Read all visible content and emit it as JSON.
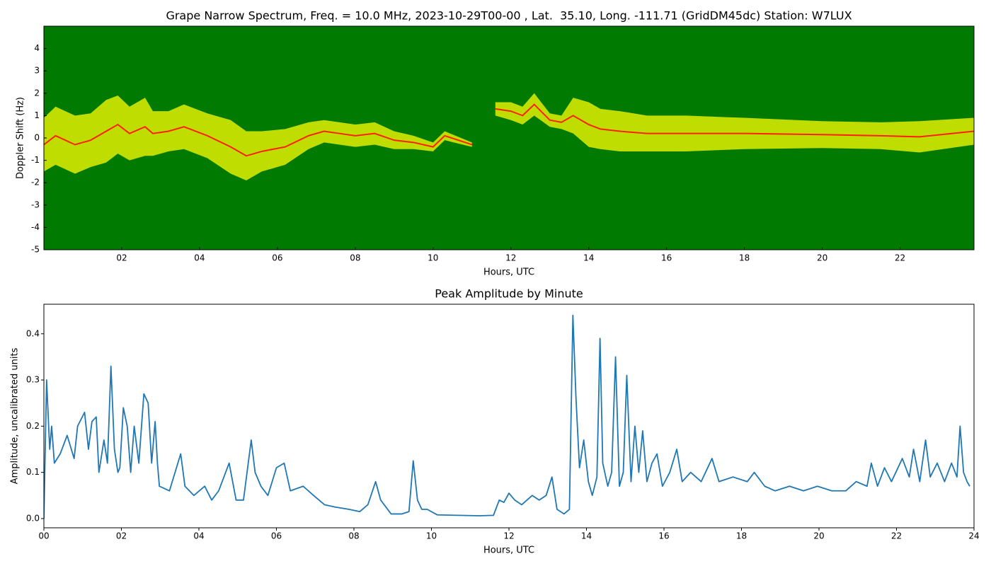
{
  "chart_data": [
    {
      "type": "spectrogram",
      "title": "Grape Narrow Spectrum, Freq. = 10.0 MHz, 2023-10-29T00-00 , Lat.  35.10, Long. -111.71 (GridDM45dc) Station: W7LUX",
      "xlabel": "Hours, UTC",
      "ylabel": "Doppler Shift (Hz)",
      "x": [
        0,
        0.3,
        0.8,
        1.2,
        1.6,
        1.9,
        2.2,
        2.6,
        2.8,
        3.2,
        3.6,
        4.2,
        4.8,
        5.2,
        5.6,
        6.2,
        6.8,
        7.2,
        7.6,
        8.0,
        8.5,
        9.0,
        9.5,
        10.0,
        10.3,
        11.0,
        11.2,
        11.6,
        12.0,
        12.3,
        12.6,
        13.0,
        13.3,
        13.6,
        14.0,
        14.3,
        14.8,
        15.5,
        16.5,
        18,
        20,
        21.5,
        22.5,
        23.9
      ],
      "values": [
        -0.3,
        0.1,
        -0.3,
        -0.1,
        0.3,
        0.6,
        0.2,
        0.5,
        0.2,
        0.3,
        0.5,
        0.1,
        -0.4,
        -0.8,
        -0.6,
        -0.4,
        0.1,
        0.3,
        0.2,
        0.1,
        0.2,
        -0.1,
        -0.2,
        -0.4,
        0.1,
        -0.3,
        null,
        1.3,
        1.2,
        1.0,
        1.5,
        0.8,
        0.7,
        1.0,
        0.6,
        0.4,
        0.3,
        0.2,
        0.2,
        0.2,
        0.15,
        0.1,
        0.05,
        0.3
      ],
      "spread": [
        1.2,
        1.3,
        1.3,
        1.2,
        1.4,
        1.3,
        1.2,
        1.3,
        1.0,
        0.9,
        1.0,
        1.0,
        1.2,
        1.1,
        0.9,
        0.8,
        0.6,
        0.5,
        0.5,
        0.5,
        0.5,
        0.4,
        0.3,
        0.2,
        0.2,
        0.1,
        null,
        0.3,
        0.4,
        0.4,
        0.5,
        0.3,
        0.3,
        0.8,
        1.0,
        0.9,
        0.9,
        0.8,
        0.8,
        0.7,
        0.6,
        0.6,
        0.7,
        0.6
      ],
      "background_color": "#007a00",
      "band_color": "#ffff00",
      "peak_color": "#ff2000",
      "xlim": [
        0,
        23.9
      ],
      "ylim": [
        -5,
        5
      ],
      "xticks": [
        {
          "value": 2,
          "label": "02"
        },
        {
          "value": 4,
          "label": "04"
        },
        {
          "value": 6,
          "label": "06"
        },
        {
          "value": 8,
          "label": "08"
        },
        {
          "value": 10,
          "label": "10"
        },
        {
          "value": 12,
          "label": "12"
        },
        {
          "value": 14,
          "label": "14"
        },
        {
          "value": 16,
          "label": "16"
        },
        {
          "value": 18,
          "label": "18"
        },
        {
          "value": 20,
          "label": "20"
        },
        {
          "value": 22,
          "label": "22"
        }
      ],
      "yticks": [
        -5,
        -4,
        -3,
        -2,
        -1,
        0,
        1,
        2,
        3,
        4
      ]
    },
    {
      "type": "line",
      "title": "Peak Amplitude by Minute",
      "xlabel": "Hours, UTC",
      "ylabel": "Amplitude, uncalibrated units",
      "color": "#1f77b4",
      "x": [
        0,
        0.07,
        0.15,
        0.2,
        0.27,
        0.42,
        0.6,
        0.78,
        0.87,
        1.05,
        1.15,
        1.24,
        1.35,
        1.42,
        1.55,
        1.64,
        1.73,
        1.82,
        1.91,
        1.96,
        2.05,
        2.15,
        2.24,
        2.33,
        2.45,
        2.58,
        2.69,
        2.78,
        2.87,
        2.93,
        2.98,
        3.24,
        3.53,
        3.64,
        3.87,
        4.15,
        4.33,
        4.51,
        4.78,
        4.96,
        5.15,
        5.35,
        5.45,
        5.6,
        5.78,
        6.0,
        6.2,
        6.36,
        6.69,
        6.96,
        7.24,
        7.51,
        7.87,
        8.15,
        8.36,
        8.56,
        8.69,
        8.96,
        9.24,
        9.42,
        9.53,
        9.64,
        9.75,
        9.89,
        10.15,
        10.69,
        11.24,
        11.6,
        11.75,
        11.87,
        12.0,
        12.15,
        12.33,
        12.6,
        12.78,
        12.96,
        13.11,
        13.24,
        13.42,
        13.56,
        13.65,
        13.73,
        13.82,
        13.93,
        14.05,
        14.15,
        14.27,
        14.35,
        14.42,
        14.55,
        14.65,
        14.75,
        14.85,
        14.95,
        15.04,
        15.15,
        15.25,
        15.35,
        15.45,
        15.56,
        15.69,
        15.82,
        15.96,
        16.15,
        16.33,
        16.47,
        16.69,
        16.96,
        17.24,
        17.42,
        17.78,
        18.15,
        18.33,
        18.6,
        18.87,
        19.24,
        19.6,
        19.96,
        20.33,
        20.69,
        20.96,
        21.24,
        21.35,
        21.51,
        21.69,
        21.87,
        22.15,
        22.33,
        22.44,
        22.6,
        22.75,
        22.87,
        23.05,
        23.24,
        23.42,
        23.56,
        23.64,
        23.73,
        23.82,
        23.89
      ],
      "values": [
        0.0,
        0.3,
        0.15,
        0.2,
        0.12,
        0.14,
        0.18,
        0.13,
        0.2,
        0.23,
        0.15,
        0.21,
        0.22,
        0.1,
        0.17,
        0.12,
        0.33,
        0.15,
        0.1,
        0.11,
        0.24,
        0.2,
        0.1,
        0.2,
        0.12,
        0.27,
        0.25,
        0.12,
        0.21,
        0.12,
        0.07,
        0.06,
        0.14,
        0.07,
        0.05,
        0.07,
        0.04,
        0.06,
        0.12,
        0.04,
        0.04,
        0.17,
        0.1,
        0.07,
        0.05,
        0.11,
        0.12,
        0.06,
        0.07,
        0.05,
        0.03,
        0.025,
        0.02,
        0.015,
        0.03,
        0.08,
        0.04,
        0.01,
        0.01,
        0.015,
        0.125,
        0.04,
        0.02,
        0.02,
        0.008,
        0.007,
        0.006,
        0.007,
        0.04,
        0.035,
        0.055,
        0.04,
        0.03,
        0.05,
        0.04,
        0.05,
        0.09,
        0.02,
        0.01,
        0.02,
        0.44,
        0.26,
        0.11,
        0.17,
        0.08,
        0.05,
        0.09,
        0.39,
        0.12,
        0.07,
        0.1,
        0.35,
        0.07,
        0.1,
        0.31,
        0.08,
        0.2,
        0.1,
        0.19,
        0.08,
        0.12,
        0.14,
        0.07,
        0.1,
        0.15,
        0.08,
        0.1,
        0.08,
        0.13,
        0.08,
        0.09,
        0.08,
        0.1,
        0.07,
        0.06,
        0.07,
        0.06,
        0.07,
        0.06,
        0.06,
        0.08,
        0.07,
        0.12,
        0.07,
        0.11,
        0.08,
        0.13,
        0.09,
        0.15,
        0.08,
        0.17,
        0.09,
        0.12,
        0.08,
        0.12,
        0.09,
        0.2,
        0.1,
        0.08,
        0.07
      ],
      "xlim": [
        0,
        24
      ],
      "ylim": [
        -0.02,
        0.464
      ],
      "xticks": [
        {
          "value": 0,
          "label": "00"
        },
        {
          "value": 2,
          "label": "02"
        },
        {
          "value": 4,
          "label": "04"
        },
        {
          "value": 6,
          "label": "06"
        },
        {
          "value": 8,
          "label": "08"
        },
        {
          "value": 10,
          "label": "10"
        },
        {
          "value": 12,
          "label": "12"
        },
        {
          "value": 14,
          "label": "14"
        },
        {
          "value": 16,
          "label": "16"
        },
        {
          "value": 18,
          "label": "18"
        },
        {
          "value": 20,
          "label": "20"
        },
        {
          "value": 22,
          "label": "22"
        },
        {
          "value": 24,
          "label": "24"
        }
      ],
      "yticks": [
        {
          "value": 0,
          "label": "0.0"
        },
        0.1,
        0.2,
        0.3,
        0.4
      ]
    }
  ]
}
